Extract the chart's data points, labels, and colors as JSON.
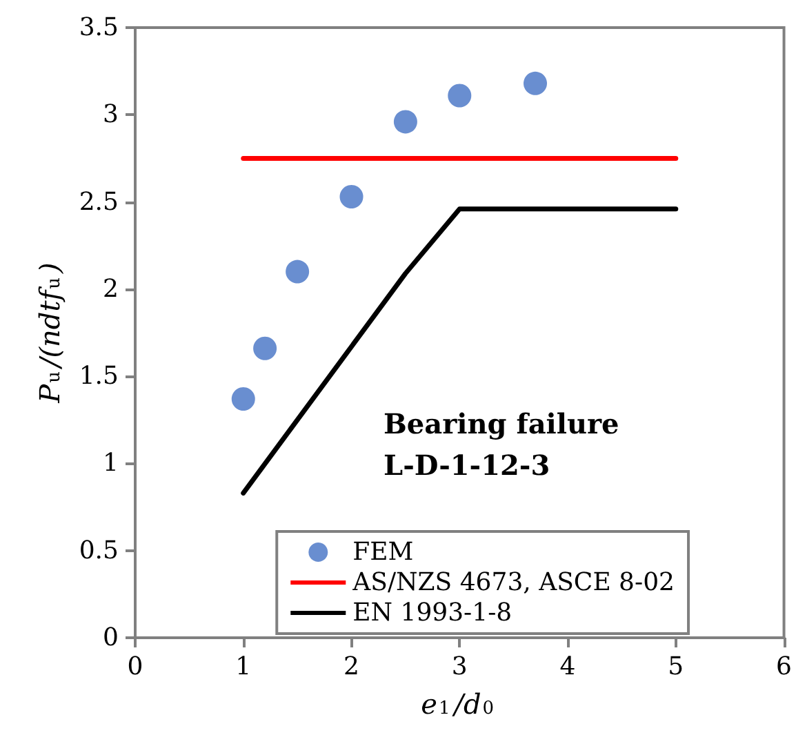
{
  "chart_data": {
    "type": "scatter",
    "xlabel": "e$_{1}$/d$_{0}$",
    "ylabel": "P$_{u}$/(ndtf$_{u}$)",
    "xlim": [
      0,
      6
    ],
    "xticks": [
      0,
      1,
      2,
      3,
      4,
      5,
      6
    ],
    "ylim": [
      0,
      3.5
    ],
    "yticks": [
      0,
      0.5,
      1,
      1.5,
      2,
      2.5,
      3,
      3.5
    ],
    "grid": false,
    "legend": "bottom right",
    "annotations": [
      "Bearing failure",
      "L-D-1-12-3"
    ],
    "series": [
      {
        "name": "FEM",
        "marker": "circle",
        "color": "#4472c4",
        "x": [
          1,
          1.2,
          1.5,
          2,
          2.5,
          3,
          3.7
        ],
        "values": [
          1.37,
          1.66,
          2.1,
          2.53,
          2.96,
          3.11,
          3.18
        ]
      },
      {
        "name": "AS/NZS 4673, ASCE 8-02",
        "type": "line",
        "marker": "none",
        "line_style": "solid",
        "color": "#ff0000",
        "x": [
          1,
          5
        ],
        "values": [
          2.75,
          2.75
        ]
      },
      {
        "name": "EN 1993-1-8",
        "type": "line",
        "marker": "none",
        "line_style": "solid",
        "color": "#000000",
        "x": [
          1,
          2.5,
          3,
          5
        ],
        "values": [
          0.83,
          2.09,
          2.46,
          2.46
        ]
      }
    ]
  }
}
